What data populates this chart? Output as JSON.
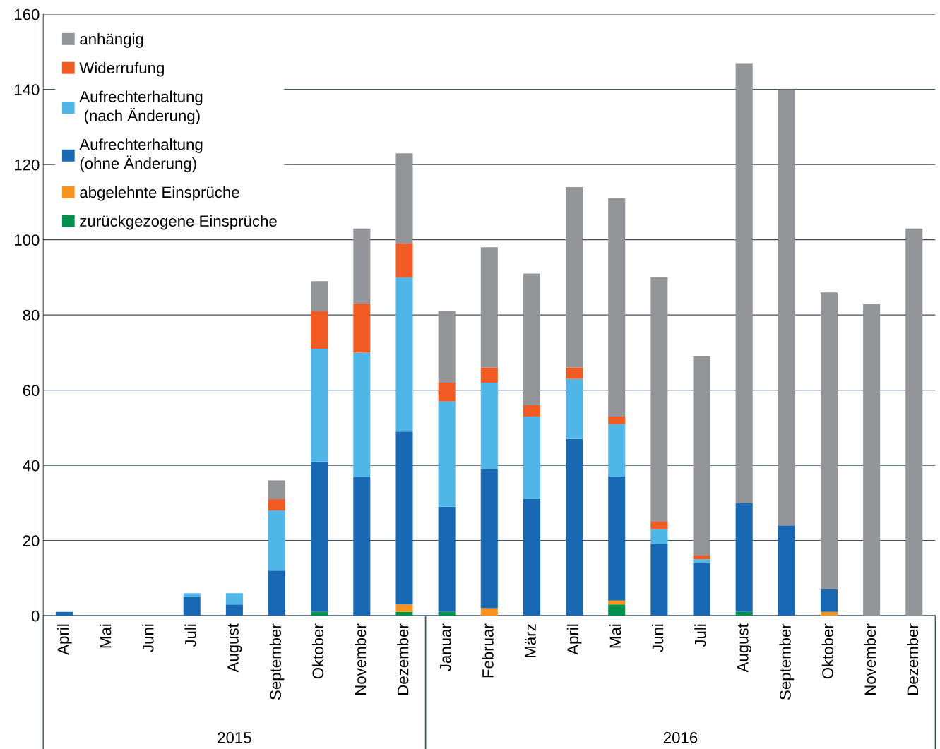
{
  "chart_data": {
    "type": "bar",
    "stacked": true,
    "categories": [
      "April",
      "Mai",
      "Juni",
      "Juli",
      "August",
      "September",
      "Oktober",
      "November",
      "Dezember",
      "Januar",
      "Februar",
      "März",
      "April",
      "Mai",
      "Juni",
      "Juli",
      "August",
      "September",
      "Oktober",
      "November",
      "Dezember"
    ],
    "series": [
      {
        "name": "zurückgezogene Einsprüche",
        "color": "#00924a",
        "values": [
          0,
          0,
          0,
          0,
          0,
          0,
          1,
          0,
          1,
          1,
          0,
          0,
          0,
          3,
          0,
          0,
          1,
          0,
          0,
          0,
          0
        ]
      },
      {
        "name": "abgelehnte Einsprüche",
        "color": "#f7941d",
        "values": [
          0,
          0,
          0,
          0,
          0,
          0,
          0,
          0,
          2,
          0,
          2,
          0,
          0,
          1,
          0,
          0,
          0,
          0,
          1,
          0,
          0
        ]
      },
      {
        "name": "Aufrechterhaltung\n(ohne Änderung)",
        "color": "#1868b4",
        "values": [
          1,
          0,
          0,
          5,
          3,
          12,
          40,
          37,
          46,
          28,
          37,
          31,
          47,
          33,
          19,
          14,
          29,
          24,
          6,
          0,
          0
        ]
      },
      {
        "name": "Aufrechterhaltung\n (nach Änderung)",
        "color": "#50b6e8",
        "values": [
          0,
          0,
          0,
          1,
          3,
          16,
          30,
          33,
          41,
          28,
          23,
          22,
          16,
          14,
          4,
          1,
          0,
          0,
          0,
          0,
          0
        ]
      },
      {
        "name": "Widerrufung",
        "color": "#f15a22",
        "values": [
          0,
          0,
          0,
          0,
          0,
          3,
          10,
          13,
          9,
          5,
          4,
          3,
          3,
          2,
          2,
          1,
          0,
          0,
          0,
          0,
          0
        ]
      },
      {
        "name": "anhängig",
        "color": "#939598",
        "values": [
          0,
          0,
          0,
          0,
          0,
          5,
          8,
          20,
          24,
          19,
          32,
          35,
          48,
          58,
          65,
          53,
          117,
          116,
          79,
          83,
          103
        ]
      }
    ],
    "ylim": [
      0,
      160
    ],
    "yticks": [
      0,
      20,
      40,
      60,
      80,
      100,
      120,
      140,
      160
    ],
    "grid": "y",
    "legend": "top left",
    "annotations": [
      "2015",
      "2016"
    ]
  }
}
